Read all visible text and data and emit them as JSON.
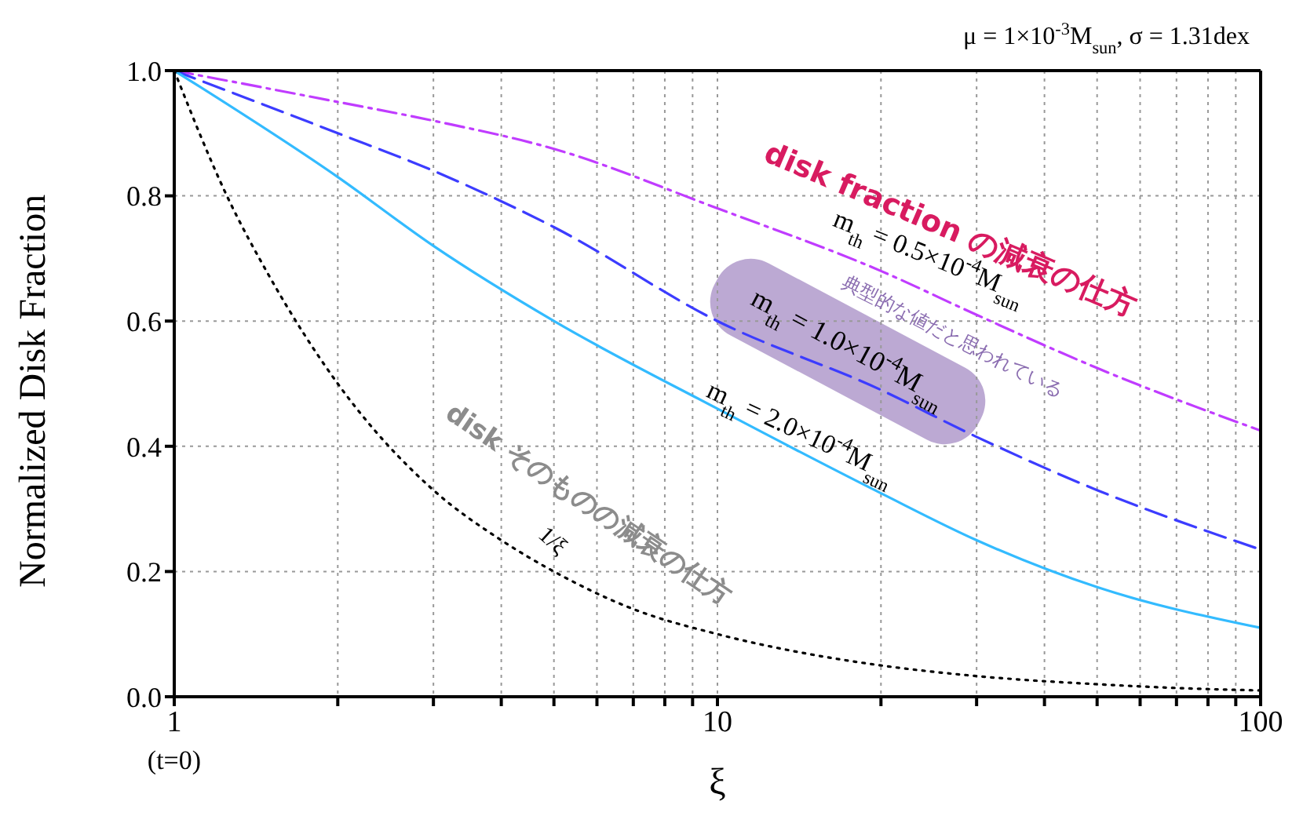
{
  "chart_data": {
    "type": "line",
    "xlabel": "ξ",
    "ylabel": "Normalized Disk Fraction",
    "log": "x",
    "grid": true,
    "marker": "none",
    "xlim": [
      1,
      100
    ],
    "xticks": [
      1,
      {
        "value": 2,
        "label": null
      },
      {
        "value": 3,
        "label": null
      },
      {
        "value": 4,
        "label": null
      },
      {
        "value": 5,
        "label": null
      },
      {
        "value": 6,
        "label": null
      },
      {
        "value": 7,
        "label": null
      },
      {
        "value": 8,
        "label": null
      },
      {
        "value": 9,
        "label": null
      },
      10,
      {
        "value": 20,
        "label": null
      },
      {
        "value": 30,
        "label": null
      },
      {
        "value": 40,
        "label": null
      },
      {
        "value": 50,
        "label": null
      },
      {
        "value": 60,
        "label": null
      },
      {
        "value": 70,
        "label": null
      },
      {
        "value": 80,
        "label": null
      },
      {
        "value": 90,
        "label": null
      },
      100
    ],
    "ylim": [
      0,
      1
    ],
    "yticks": [
      {
        "value": 0,
        "label": "0.0"
      },
      {
        "value": 0.2,
        "label": "0.2"
      },
      {
        "value": 0.4,
        "label": "0.4"
      },
      {
        "value": 0.6,
        "label": "0.6"
      },
      {
        "value": 0.8,
        "label": "0.8"
      },
      {
        "value": 1,
        "label": "1.0"
      }
    ],
    "series": [
      {
        "name": "m$_{th}$ = 0.5×10$^{-4}$M$_{sun}$",
        "color": "#c03cff",
        "line_style": "dashdot",
        "x": [
          1,
          2,
          3,
          5,
          10,
          20,
          30,
          50,
          100
        ],
        "values": [
          1.0,
          0.95,
          0.92,
          0.875,
          0.78,
          0.68,
          0.61,
          0.525,
          0.425
        ]
      },
      {
        "name": "m$_{th}$ = 1.0×10$^{-4}$M$_{sun}$",
        "color": "#3c3cff",
        "line_style": "dashed",
        "x": [
          1,
          2,
          3,
          5,
          10,
          20,
          30,
          50,
          100
        ],
        "values": [
          1.0,
          0.9,
          0.84,
          0.75,
          0.6,
          0.49,
          0.415,
          0.33,
          0.235
        ]
      },
      {
        "name": "m$_{th}$ = 2.0×10$^{-4}$M$_{sun}$",
        "color": "#33bbff",
        "line_style": "solid",
        "x": [
          1,
          2,
          3,
          5,
          10,
          20,
          30,
          50,
          100
        ],
        "values": [
          1.0,
          0.83,
          0.72,
          0.6,
          0.46,
          0.325,
          0.25,
          0.175,
          0.11
        ]
      },
      {
        "name": "1/ξ",
        "color": "#000000",
        "line_style": "dotted",
        "x": [
          1,
          1.25,
          1.5,
          2,
          3,
          4,
          5,
          7,
          10,
          15,
          20,
          30,
          50,
          70,
          100
        ],
        "values": [
          1.0,
          0.8,
          0.67,
          0.5,
          0.33,
          0.25,
          0.2,
          0.14,
          0.1,
          0.067,
          0.05,
          0.033,
          0.02,
          0.014,
          0.01
        ]
      }
    ],
    "annotations": [
      "μ = 1×10$^{-3}$M$_{sun}$, σ = 1.31dex",
      "disk fraction の減衰の仕方",
      "典型的な値だと思われている",
      "disk そのものの減衰の仕方",
      "(t=0)"
    ]
  }
}
